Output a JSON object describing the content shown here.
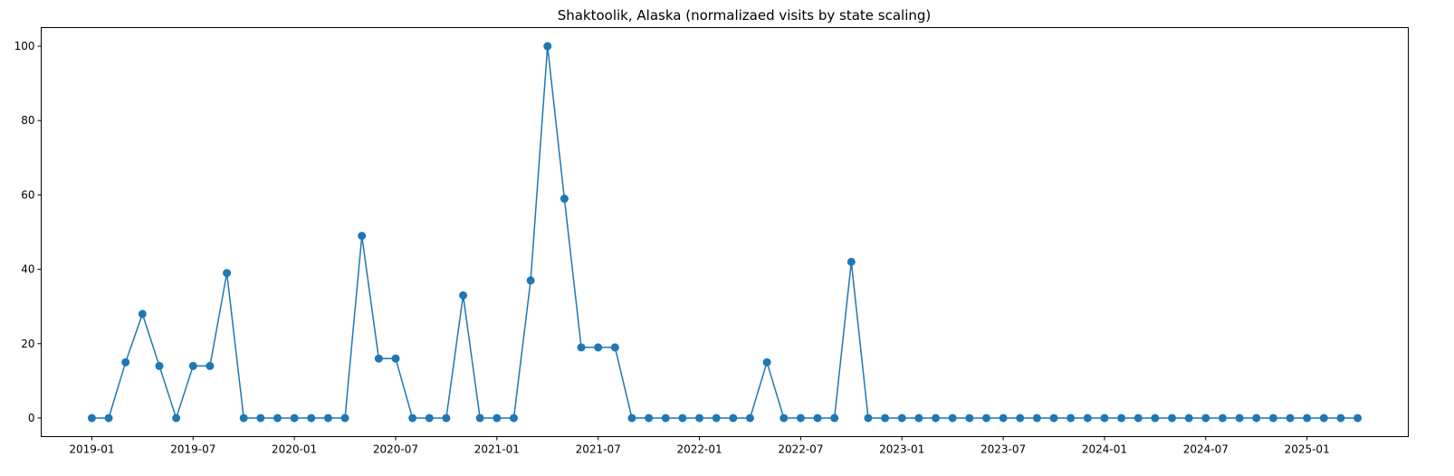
{
  "chart_data": {
    "type": "line",
    "title": "Shaktoolik, Alaska (normalizaed visits by state scaling)",
    "xlabel": "",
    "ylabel": "",
    "x_start": "2019-01",
    "x_end": "2025-04",
    "xlim": [
      "2018-10",
      "2025-07"
    ],
    "ylim": [
      -5,
      105
    ],
    "x_ticks": [
      "2019-01",
      "2019-07",
      "2020-01",
      "2020-07",
      "2021-01",
      "2021-07",
      "2022-01",
      "2022-07",
      "2023-01",
      "2023-07",
      "2024-01",
      "2024-07",
      "2025-01"
    ],
    "y_ticks": [
      0,
      20,
      40,
      60,
      80,
      100
    ],
    "grid": false,
    "legend": "none",
    "marker": "circle",
    "color": "#1f77b4",
    "series": [
      {
        "values": [
          0,
          0,
          15,
          28,
          14,
          0,
          14,
          14,
          39,
          0,
          0,
          0,
          0,
          0,
          0,
          0,
          49,
          16,
          16,
          0,
          0,
          0,
          33,
          0,
          0,
          0,
          37,
          100,
          59,
          19,
          19,
          19,
          0,
          0,
          0,
          0,
          0,
          0,
          0,
          0,
          15,
          0,
          0,
          0,
          0,
          42,
          0,
          0,
          0,
          0,
          0,
          0,
          0,
          0,
          0,
          0,
          0,
          0,
          0,
          0,
          0,
          0,
          0,
          0,
          0,
          0,
          0,
          0,
          0,
          0,
          0,
          0,
          0,
          0,
          0,
          0
        ]
      }
    ]
  }
}
